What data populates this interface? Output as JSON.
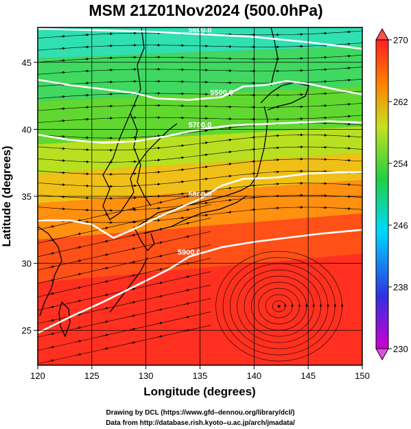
{
  "title": "MSM 21Z01Nov2024 (500.0hPa)",
  "xlabel": "Longitude (degrees)",
  "ylabel": "Latitude  (degrees)",
  "credit_line1": "Drawing by DCL (https://www.gfd–dennou.org/library/dcl/)",
  "credit_line2": "Data from http://database.rish.kyoto–u.ac.jp/arch/jmadata/",
  "map": {
    "lon_range": [
      120,
      150
    ],
    "lat_range": [
      22.4,
      47.6
    ],
    "lon_ticks": [
      120,
      125,
      130,
      135,
      140,
      145,
      150
    ],
    "lat_ticks": [
      25,
      30,
      35,
      40,
      45
    ],
    "grid": true,
    "field": "temperature (K)",
    "colorbar": {
      "min": 230,
      "max": 270,
      "ticks": [
        230,
        238,
        246,
        254,
        262,
        270
      ],
      "placement": "right",
      "colors": [
        "#d000d0",
        "#3030e0",
        "#00d8ff",
        "#20d040",
        "#c8e020",
        "#ff8000",
        "#ff2020"
      ]
    },
    "contours": [
      {
        "label": "5600.0",
        "value": 5600,
        "points": [
          [
            120,
            47.5
          ],
          [
            125,
            47.4
          ],
          [
            130,
            47.3
          ],
          [
            135,
            47.1
          ],
          [
            140,
            46.9
          ],
          [
            145,
            46.5
          ],
          [
            150,
            46.0
          ]
        ]
      },
      {
        "label": "5500.0",
        "value": 5500,
        "points": [
          [
            120,
            43.7
          ],
          [
            123,
            43.3
          ],
          [
            126,
            43.0
          ],
          [
            129,
            42.7
          ],
          [
            131,
            42.3
          ],
          [
            134,
            42.2
          ],
          [
            137,
            42.4
          ],
          [
            139,
            43.2
          ],
          [
            141,
            43.3
          ],
          [
            143,
            43.6
          ],
          [
            145,
            43.4
          ],
          [
            148,
            42.9
          ],
          [
            150,
            42.6
          ]
        ]
      },
      {
        "label": "5700.0",
        "value": 5700,
        "points": [
          [
            120,
            39.6
          ],
          [
            123,
            39.2
          ],
          [
            126,
            39.0
          ],
          [
            129,
            39.1
          ],
          [
            132,
            39.5
          ],
          [
            135,
            40.0
          ],
          [
            138,
            40.3
          ],
          [
            141,
            40.4
          ],
          [
            144,
            40.5
          ],
          [
            147,
            40.6
          ],
          [
            150,
            40.5
          ]
        ]
      },
      {
        "label": "5800.0",
        "value": 5800,
        "points": [
          [
            120,
            33.2
          ],
          [
            123,
            33.2
          ],
          [
            125,
            32.9
          ],
          [
            127,
            31.9
          ],
          [
            129,
            32.6
          ],
          [
            131,
            33.4
          ],
          [
            133,
            34.1
          ],
          [
            135,
            34.8
          ],
          [
            137,
            35.8
          ],
          [
            139,
            36.3
          ],
          [
            142,
            36.4
          ],
          [
            145,
            36.7
          ],
          [
            148,
            36.8
          ],
          [
            150,
            36.8
          ]
        ]
      },
      {
        "label": "5900.0",
        "value": 5900,
        "points": [
          [
            120,
            24.8
          ],
          [
            123,
            26.0
          ],
          [
            126,
            27.1
          ],
          [
            129,
            28.3
          ],
          [
            132,
            29.5
          ],
          [
            134,
            30.5
          ],
          [
            137,
            31.2
          ],
          [
            140,
            31.6
          ],
          [
            143,
            31.9
          ],
          [
            146,
            32.2
          ],
          [
            150,
            32.5
          ]
        ]
      }
    ],
    "typhoon_center": [
      142.3,
      26.8
    ]
  }
}
